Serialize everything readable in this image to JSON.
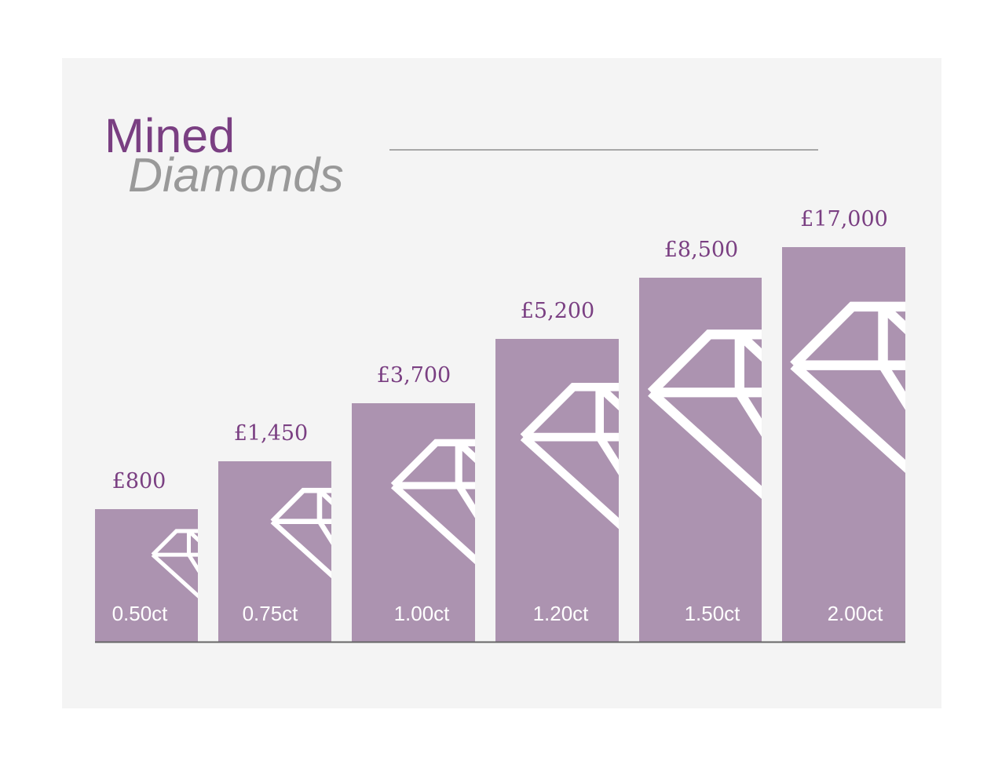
{
  "title": {
    "main": "Mined",
    "sub": "Diamonds"
  },
  "colors": {
    "accent": "#7a3f82",
    "bar": "#ac93b0",
    "subtitle": "#999999",
    "background": "#f4f4f4",
    "axis": "#666666"
  },
  "icons": {
    "bar_icon": "diamond-icon"
  },
  "chart_data": {
    "type": "bar",
    "categories": [
      "0.50ct",
      "0.75ct",
      "1.00ct",
      "1.20ct",
      "1.50ct",
      "2.00ct"
    ],
    "values": [
      800,
      1450,
      3700,
      5200,
      8500,
      17000
    ],
    "value_labels": [
      "£800",
      "£1,450",
      "£3,700",
      "£5,200",
      "£8,500",
      "£17,000"
    ],
    "title": "Mined Diamonds",
    "xlabel": "",
    "ylabel": "",
    "grid": false,
    "legend": "none"
  }
}
